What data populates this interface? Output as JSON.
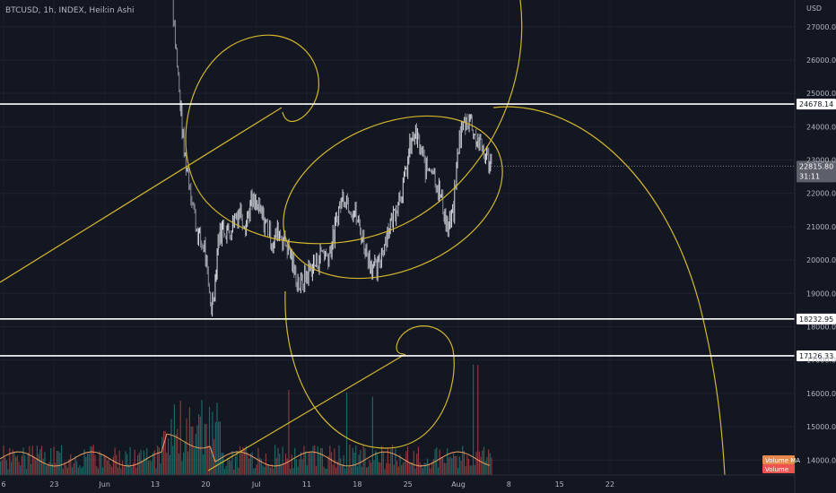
{
  "header": {
    "title": "BTCUSD, 1h, INDEX, Heikin Ashi"
  },
  "chart_data": {
    "type": "candlestick",
    "currency_label": "USD",
    "y_ticks": [
      27000,
      26000,
      25000,
      24000,
      23000,
      22000,
      21000,
      20000,
      19000,
      18000,
      17000,
      16000,
      15000,
      14000
    ],
    "y_tick_labels": [
      "27000.00",
      "26000.00",
      "25000.00",
      "24000.00",
      "23000.00",
      "22000.00",
      "21000.00",
      "20000.00",
      "19000.00",
      "18000.00",
      "17000.00",
      "16000.00",
      "15000.00",
      "14000.00"
    ],
    "x_tick_labels": [
      "6",
      "23",
      "Jun",
      "13",
      "20",
      "Jul",
      "11",
      "18",
      "25",
      "Aug",
      "8",
      "15",
      "22"
    ],
    "ylim": [
      13550,
      27800
    ],
    "horizontal_levels": [
      {
        "value": 24678.14,
        "label": "24678.14"
      },
      {
        "value": 18232.95,
        "label": "18232.95"
      },
      {
        "value": 17126.33,
        "label": "17126.33"
      }
    ],
    "last_price": {
      "value": 22815.8,
      "label": "22815.80",
      "countdown": "31:11"
    },
    "legend_badges": [
      "Volume MA",
      "Volume"
    ],
    "price_path": [
      [
        0,
        31000
      ],
      [
        0.4,
        27500
      ],
      [
        1,
        25800
      ],
      [
        1.5,
        24500
      ],
      [
        2,
        23200
      ],
      [
        2.6,
        22600
      ],
      [
        3.2,
        21800
      ],
      [
        3.8,
        21000
      ],
      [
        4.4,
        20500
      ],
      [
        5,
        20400
      ],
      [
        5.5,
        19200
      ],
      [
        6,
        18600
      ],
      [
        6.5,
        19300
      ],
      [
        7,
        20700
      ],
      [
        7.8,
        21000
      ],
      [
        8.6,
        20800
      ],
      [
        9.4,
        21300
      ],
      [
        10.2,
        21500
      ],
      [
        11,
        21100
      ],
      [
        11.8,
        21700
      ],
      [
        12.6,
        21600
      ],
      [
        13.4,
        21300
      ],
      [
        14.2,
        21000
      ],
      [
        15,
        20500
      ],
      [
        15.8,
        20900
      ],
      [
        16.6,
        20600
      ],
      [
        17.4,
        20300
      ],
      [
        18.2,
        19600
      ],
      [
        19,
        19200
      ],
      [
        19.8,
        19500
      ],
      [
        20.6,
        19800
      ],
      [
        21.4,
        19900
      ],
      [
        22.2,
        20300
      ],
      [
        23,
        20100
      ],
      [
        23.8,
        20600
      ],
      [
        24.6,
        21500
      ],
      [
        25.4,
        22000
      ],
      [
        26.2,
        21700
      ],
      [
        27,
        21400
      ],
      [
        27.8,
        20900
      ],
      [
        28.6,
        20300
      ],
      [
        29.4,
        19900
      ],
      [
        30.2,
        19600
      ],
      [
        31,
        20300
      ],
      [
        31.8,
        20900
      ],
      [
        32.6,
        21300
      ],
      [
        33.4,
        21900
      ],
      [
        34.2,
        22300
      ],
      [
        35,
        23300
      ],
      [
        35.8,
        23800
      ],
      [
        36.6,
        23300
      ],
      [
        37.4,
        22700
      ],
      [
        38.2,
        22900
      ],
      [
        39,
        22300
      ],
      [
        39.8,
        21700
      ],
      [
        40.6,
        20900
      ],
      [
        41.4,
        21400
      ],
      [
        42.2,
        23600
      ],
      [
        43,
        24100
      ],
      [
        43.8,
        24300
      ],
      [
        44.6,
        23700
      ],
      [
        45.4,
        23400
      ],
      [
        46.2,
        23100
      ],
      [
        47,
        22900
      ]
    ]
  }
}
